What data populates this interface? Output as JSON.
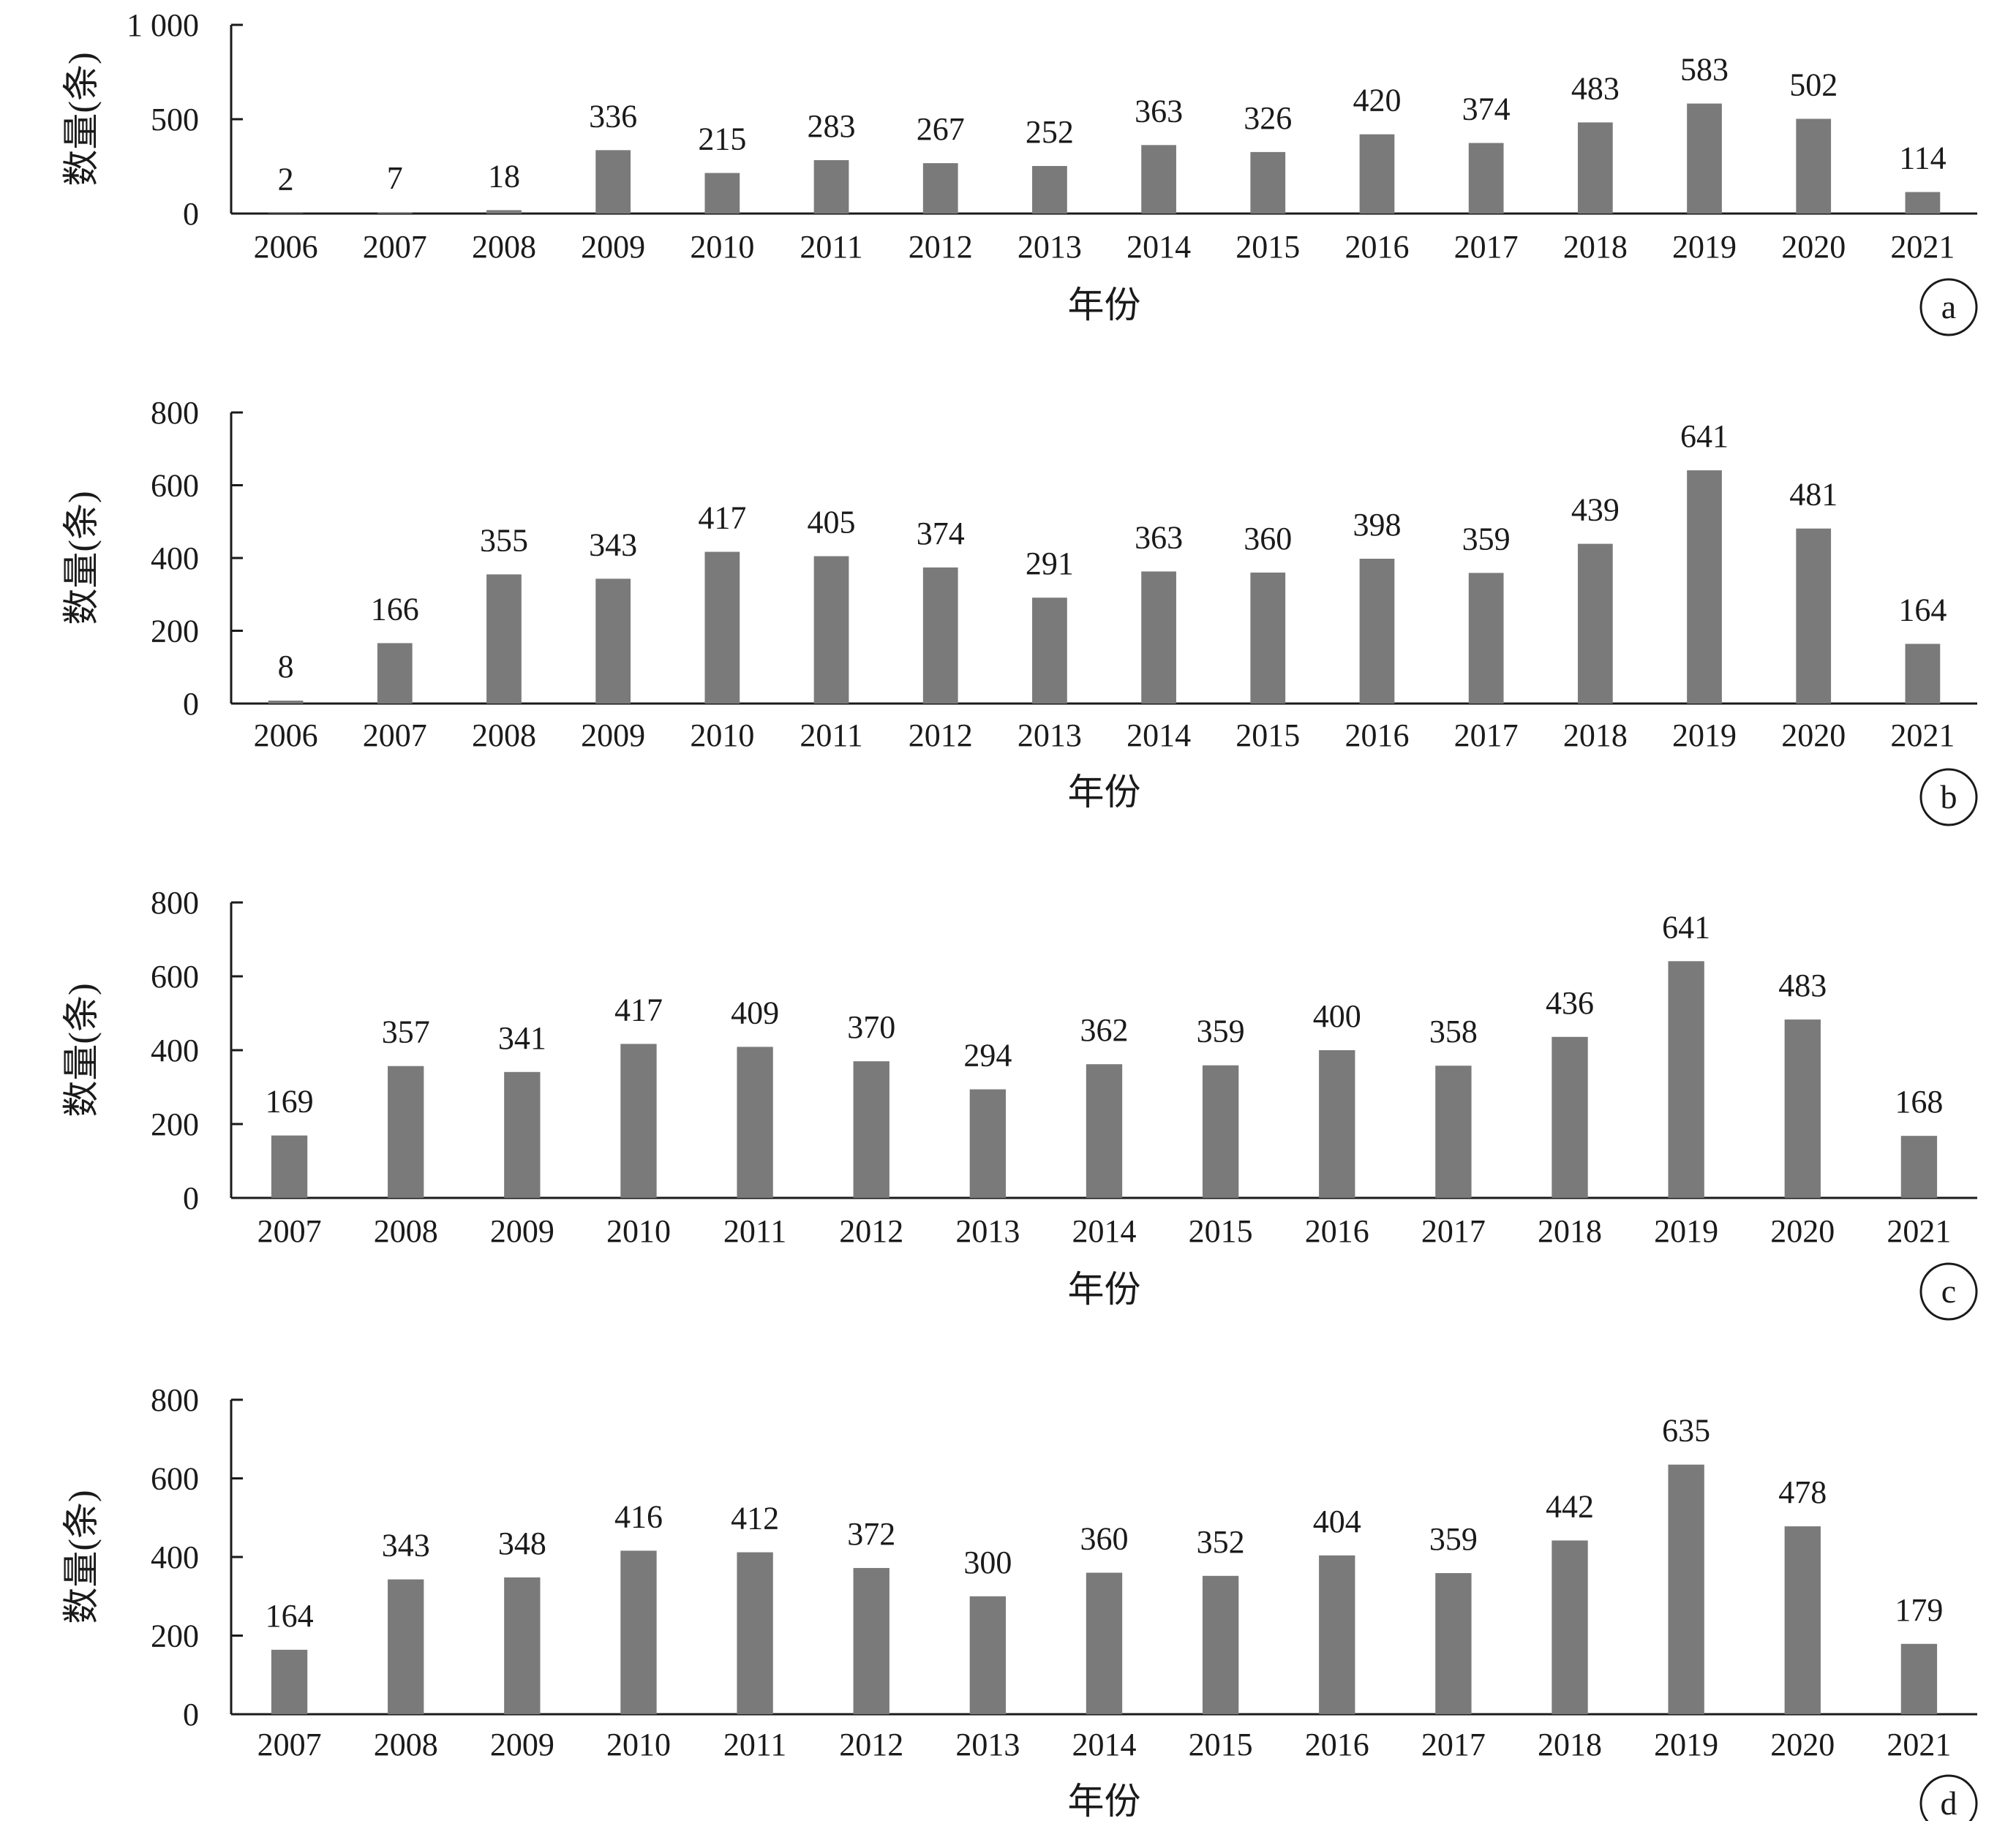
{
  "chart_data": [
    {
      "type": "bar",
      "panel": "a",
      "xlabel": "年份",
      "ylabel": "数量(条)",
      "ylim": [
        0,
        1000
      ],
      "yticks": [
        "0",
        "500",
        "1 000"
      ],
      "bar_color": "#7a7a7a",
      "categories": [
        "2006",
        "2007",
        "2008",
        "2009",
        "2010",
        "2011",
        "2012",
        "2013",
        "2014",
        "2015",
        "2016",
        "2017",
        "2018",
        "2019",
        "2020",
        "2021"
      ],
      "values": [
        2,
        7,
        18,
        336,
        215,
        283,
        267,
        252,
        363,
        326,
        420,
        374,
        483,
        583,
        502,
        114
      ]
    },
    {
      "type": "bar",
      "panel": "b",
      "xlabel": "年份",
      "ylabel": "数量(条)",
      "ylim": [
        0,
        800
      ],
      "yticks": [
        "0",
        "200",
        "400",
        "600",
        "800"
      ],
      "bar_color": "#7a7a7a",
      "categories": [
        "2006",
        "2007",
        "2008",
        "2009",
        "2010",
        "2011",
        "2012",
        "2013",
        "2014",
        "2015",
        "2016",
        "2017",
        "2018",
        "2019",
        "2020",
        "2021"
      ],
      "values": [
        8,
        166,
        355,
        343,
        417,
        405,
        374,
        291,
        363,
        360,
        398,
        359,
        439,
        641,
        481,
        164
      ]
    },
    {
      "type": "bar",
      "panel": "c",
      "xlabel": "年份",
      "ylabel": "数量(条)",
      "ylim": [
        0,
        800
      ],
      "yticks": [
        "0",
        "200",
        "400",
        "600",
        "800"
      ],
      "bar_color": "#7a7a7a",
      "categories": [
        "2007",
        "2008",
        "2009",
        "2010",
        "2011",
        "2012",
        "2013",
        "2014",
        "2015",
        "2016",
        "2017",
        "2018",
        "2019",
        "2020",
        "2021"
      ],
      "values": [
        169,
        357,
        341,
        417,
        409,
        370,
        294,
        362,
        359,
        400,
        358,
        436,
        641,
        483,
        168
      ]
    },
    {
      "type": "bar",
      "panel": "d",
      "xlabel": "年份",
      "ylabel": "数量(条)",
      "ylim": [
        0,
        800
      ],
      "yticks": [
        "0",
        "200",
        "400",
        "600",
        "800"
      ],
      "bar_color": "#7a7a7a",
      "categories": [
        "2007",
        "2008",
        "2009",
        "2010",
        "2011",
        "2012",
        "2013",
        "2014",
        "2015",
        "2016",
        "2017",
        "2018",
        "2019",
        "2020",
        "2021"
      ],
      "values": [
        164,
        343,
        348,
        416,
        412,
        372,
        300,
        360,
        352,
        404,
        359,
        442,
        635,
        478,
        179
      ]
    }
  ]
}
